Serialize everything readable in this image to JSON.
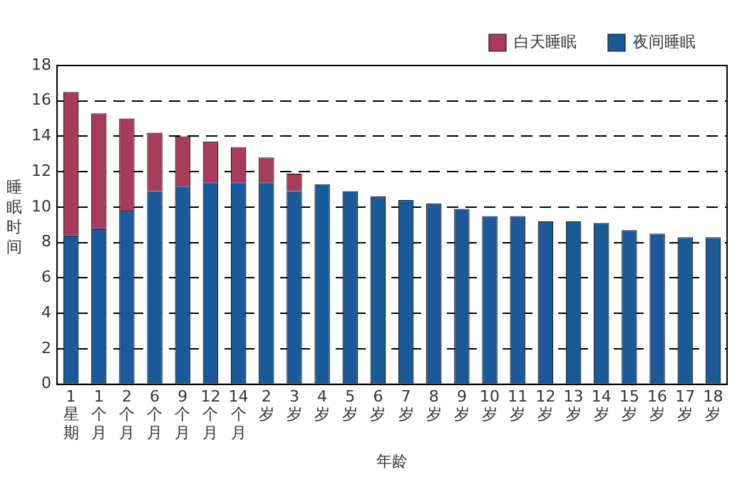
{
  "chart_data": {
    "type": "bar",
    "stacked": true,
    "xlabel": "年龄",
    "ylabel": "睡眠时间",
    "categories": [
      "1星期",
      "1个月",
      "2个月",
      "6个月",
      "9个月",
      "12个月",
      "14个月",
      "2岁",
      "3岁",
      "4岁",
      "5岁",
      "6岁",
      "7岁",
      "8岁",
      "9岁",
      "10岁",
      "11岁",
      "12岁",
      "13岁",
      "14岁",
      "15岁",
      "16岁",
      "17岁",
      "18岁"
    ],
    "series": [
      {
        "name": "夜间睡眠",
        "color": "#1a5a9a",
        "values": [
          8.4,
          8.8,
          9.8,
          10.9,
          11.2,
          11.4,
          11.4,
          11.4,
          10.9,
          11.3,
          10.9,
          10.6,
          10.4,
          10.2,
          9.9,
          9.5,
          9.5,
          9.2,
          9.2,
          9.1,
          8.7,
          8.5,
          8.3,
          8.3
        ]
      },
      {
        "name": "白天睡眠",
        "color": "#a83a5c",
        "values": [
          8.1,
          6.5,
          5.2,
          3.3,
          2.8,
          2.3,
          2.0,
          1.4,
          1.0,
          null,
          null,
          null,
          null,
          null,
          null,
          null,
          null,
          null,
          null,
          null,
          null,
          null,
          null,
          null
        ]
      }
    ],
    "ylim": [
      0,
      18
    ],
    "yticks": [
      0,
      2,
      4,
      6,
      8,
      10,
      12,
      14,
      16,
      18
    ],
    "grid": "y",
    "legend": "top right"
  }
}
